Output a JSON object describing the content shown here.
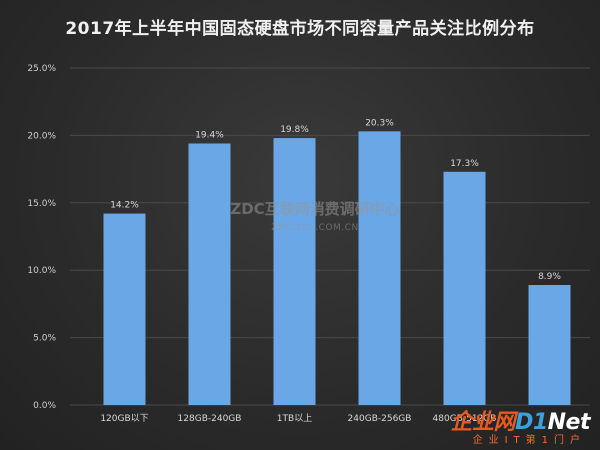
{
  "chart_data": {
    "type": "bar",
    "title": "2017年上半年中国固态硬盘市场不同容量产品关注比例分布",
    "categories": [
      "120GB以下",
      "128GB-240GB",
      "1TB以上",
      "240GB-256GB",
      "480GB-512GB",
      ""
    ],
    "values": [
      14.2,
      19.4,
      19.8,
      20.3,
      17.3,
      8.9
    ],
    "value_labels": [
      "14.2%",
      "19.4%",
      "19.8%",
      "20.3%",
      "17.3%",
      "8.9%"
    ],
    "yticks": [
      "0.0%",
      "5.0%",
      "10.0%",
      "15.0%",
      "20.0%",
      "25.0%"
    ],
    "ylim": [
      0,
      25
    ],
    "grid": true,
    "bar_color": "#6aa7e6"
  },
  "watermark": {
    "main": "ZDC互联网消费调研中心",
    "sub": "ZDC.ZOL.COM.CN"
  },
  "logo": {
    "brand_a": "企业网",
    "brand_b": "D1",
    "brand_c": "Net",
    "slogan": "企业IT第1门户"
  }
}
